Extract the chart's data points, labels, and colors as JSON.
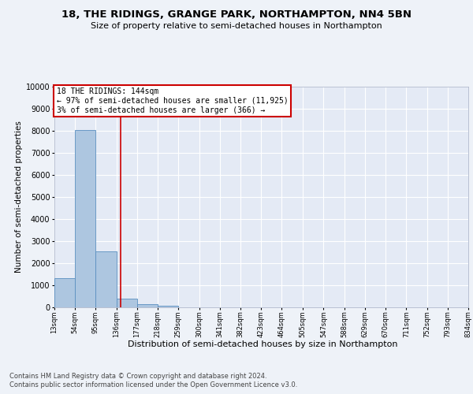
{
  "title": "18, THE RIDINGS, GRANGE PARK, NORTHAMPTON, NN4 5BN",
  "subtitle": "Size of property relative to semi-detached houses in Northampton",
  "xlabel": "Distribution of semi-detached houses by size in Northampton",
  "ylabel": "Number of semi-detached properties",
  "footnote1": "Contains HM Land Registry data © Crown copyright and database right 2024.",
  "footnote2": "Contains public sector information licensed under the Open Government Licence v3.0.",
  "annotation_title": "18 THE RIDINGS: 144sqm",
  "annotation_line1": "← 97% of semi-detached houses are smaller (11,925)",
  "annotation_line2": "3% of semi-detached houses are larger (366) →",
  "bar_left_edges": [
    13,
    54,
    95,
    136,
    177,
    218,
    259,
    300,
    341,
    382,
    423,
    464,
    505,
    547,
    588,
    629,
    670,
    711,
    752,
    793
  ],
  "bar_widths": [
    41,
    41,
    41,
    41,
    41,
    41,
    41,
    41,
    41,
    41,
    41,
    41,
    41,
    41,
    41,
    41,
    41,
    41,
    41,
    41
  ],
  "bar_heights": [
    1320,
    8020,
    2520,
    390,
    130,
    70,
    0,
    0,
    0,
    0,
    0,
    0,
    0,
    0,
    0,
    0,
    0,
    0,
    0,
    0
  ],
  "bar_color": "#adc6e0",
  "bar_edge_color": "#5a8fc0",
  "vline_x": 144,
  "vline_color": "#cc0000",
  "ylim": [
    0,
    10000
  ],
  "yticks": [
    0,
    1000,
    2000,
    3000,
    4000,
    5000,
    6000,
    7000,
    8000,
    9000,
    10000
  ],
  "tick_labels": [
    "13sqm",
    "54sqm",
    "95sqm",
    "136sqm",
    "177sqm",
    "218sqm",
    "259sqm",
    "300sqm",
    "341sqm",
    "382sqm",
    "423sqm",
    "464sqm",
    "505sqm",
    "547sqm",
    "588sqm",
    "629sqm",
    "670sqm",
    "711sqm",
    "752sqm",
    "793sqm",
    "834sqm"
  ],
  "bg_color": "#eef2f8",
  "plot_bg_color": "#e4eaf5",
  "annotation_box_color": "#ffffff",
  "annotation_box_edge": "#cc0000",
  "title_fontsize": 9.5,
  "subtitle_fontsize": 8,
  "ylabel_fontsize": 7.5,
  "xlabel_fontsize": 8,
  "ytick_fontsize": 7,
  "xtick_fontsize": 6,
  "footnote_fontsize": 6,
  "annotation_fontsize": 7
}
